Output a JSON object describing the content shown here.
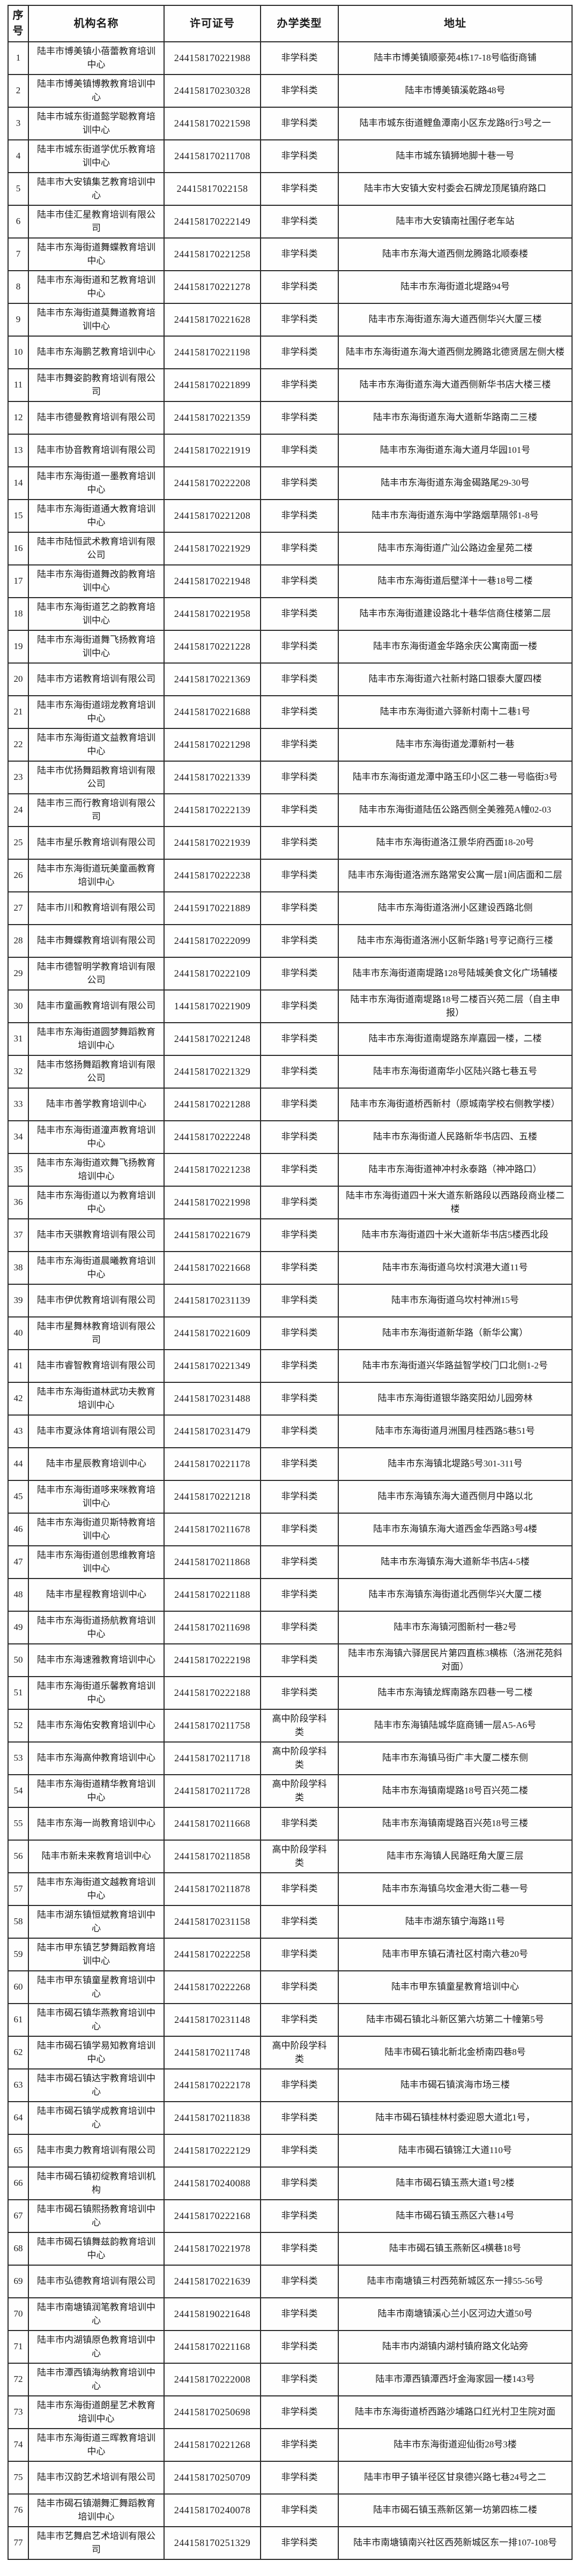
{
  "page": {
    "background": "#ffffff",
    "border_color": "#2b2b2b",
    "text_color": "#1b1b1b"
  },
  "table": {
    "columns": [
      {
        "key": "no",
        "label": "序号"
      },
      {
        "key": "name",
        "label": "机构名称"
      },
      {
        "key": "license",
        "label": "许可证号"
      },
      {
        "key": "type",
        "label": "办学类型"
      },
      {
        "key": "address",
        "label": "地址"
      }
    ],
    "rows": [
      {
        "no": "1",
        "name": "陆丰市博美镇小蓓蕾教育培训中心",
        "license": "244158170221988",
        "type": "非学科类",
        "address": "陆丰市博美镇顺豪苑4栋17-18号临街商铺"
      },
      {
        "no": "2",
        "name": "陆丰市博美镇博教教育培训中心",
        "license": "244158170230328",
        "type": "非学科类",
        "address": "陆丰市博美镇溪乾路48号"
      },
      {
        "no": "3",
        "name": "陆丰市城东街道懿学聪教育培训中心",
        "license": "244158170221598",
        "type": "非学科类",
        "address": "陆丰市城东街道鲤鱼潭南小区东龙路8行3号之一"
      },
      {
        "no": "4",
        "name": "陆丰市城东街道学优乐教育培训中心",
        "license": "244158170211708",
        "type": "非学科类",
        "address": "陆丰市城东镇狮地脚十巷一号"
      },
      {
        "no": "5",
        "name": "陆丰市大安镇集艺教育培训中心",
        "license": "24415817022158",
        "type": "非学科类",
        "address": "陆丰市大安镇大安村委会石牌龙顶尾镇府路口"
      },
      {
        "no": "6",
        "name": "陆丰市佳汇星教育培训有限公司",
        "license": "244158170222149",
        "type": "非学科类",
        "address": "陆丰市大安镇南社围仔老车站"
      },
      {
        "no": "7",
        "name": "陆丰市东海街道舞蝶教育培训中心",
        "license": "244158170221258",
        "type": "非学科类",
        "address": "陆丰市东海大道西侧龙腾路北顺泰楼"
      },
      {
        "no": "8",
        "name": "陆丰市东海街道和艺教育培训中心",
        "license": "244158170221278",
        "type": "非学科类",
        "address": "陆丰市东海街道北堤路94号"
      },
      {
        "no": "9",
        "name": "陆丰市东海街道莫舞道教育培训中心",
        "license": "244158170221628",
        "type": "非学科类",
        "address": "陆丰市东海街道东海大道西侧华兴大厦三楼"
      },
      {
        "no": "10",
        "name": "陆丰市东海鹏艺教育培训中心",
        "license": "244158170221198",
        "type": "非学科类",
        "address": "陆丰市东海街道东海大道西侧龙腾路北德贤居左侧大楼"
      },
      {
        "no": "11",
        "name": "陆丰市舞姿韵教育培训有限公司",
        "license": "244158170221899",
        "type": "非学科类",
        "address": "陆丰市东海街道东海大道西侧新华书店大楼三楼"
      },
      {
        "no": "12",
        "name": "陆丰市德曼教育培训有限公司",
        "license": "244158170221359",
        "type": "非学科类",
        "address": "陆丰市东海街道东海大道新华路南二三楼"
      },
      {
        "no": "13",
        "name": "陆丰市协音教育培训有限公司",
        "license": "244158170221919",
        "type": "非学科类",
        "address": "陆丰市东海街道东海大道月华园101号"
      },
      {
        "no": "14",
        "name": "陆丰市东海街道一墨教育培训中心",
        "license": "244158170222208",
        "type": "非学科类",
        "address": "陆丰市东海街道东海金碣路尾29-30号"
      },
      {
        "no": "15",
        "name": "陆丰市东海街道通大教育培训中心",
        "license": "244158170221208",
        "type": "非学科类",
        "address": "陆丰市东海街道东海中学路烟草隔邻1-8号"
      },
      {
        "no": "16",
        "name": "陆丰市陆恒武术教育培训有限公司",
        "license": "244158170221929",
        "type": "非学科类",
        "address": "陆丰市东海街道广汕公路边金星苑二楼"
      },
      {
        "no": "17",
        "name": "陆丰市东海街道舞改韵教育培训中心",
        "license": "244158170221948",
        "type": "非学科类",
        "address": "陆丰市东海街道后壁洋十一巷18号二楼"
      },
      {
        "no": "18",
        "name": "陆丰市东海街道艺之韵教育培训中心",
        "license": "244158170221958",
        "type": "非学科类",
        "address": "陆丰市东海街道建设路北十巷华信商住楼第二层"
      },
      {
        "no": "19",
        "name": "陆丰市东海街道舞飞扬教育培训中心",
        "license": "244158170221228",
        "type": "非学科类",
        "address": "陆丰市东海街道金华路余庆公寓南面一楼"
      },
      {
        "no": "20",
        "name": "陆丰市方诺教育培训有限公司",
        "license": "244158170221369",
        "type": "非学科类",
        "address": "陆丰市东海街道六社新村路口银泰大厦四楼"
      },
      {
        "no": "21",
        "name": "陆丰市东海街道翊龙教育培训中心",
        "license": "244158170221688",
        "type": "非学科类",
        "address": "陆丰市东海街道六驿新村南十二巷1号"
      },
      {
        "no": "22",
        "name": "陆丰市东海街道文益教育培训中心",
        "license": "244158170221298",
        "type": "非学科类",
        "address": "陆丰市东海街道龙潭新村一巷"
      },
      {
        "no": "23",
        "name": "陆丰市优扬舞蹈教育培训有限公司",
        "license": "244158170221339",
        "type": "非学科类",
        "address": "陆丰市东海街道龙潭中路玉印小区二巷一号临街3号"
      },
      {
        "no": "24",
        "name": "陆丰市三而行教育培训有限公司",
        "license": "244158170222139",
        "type": "非学科类",
        "address": "陆丰市东海街道陆伍公路西侧全美雅苑A幢02-03"
      },
      {
        "no": "25",
        "name": "陆丰市星乐教育培训有限公司",
        "license": "244158170221939",
        "type": "非学科类",
        "address": "陆丰市东海街道洛江景华府西面18-20号"
      },
      {
        "no": "26",
        "name": "陆丰市东海街道玩美童画教育培训中心",
        "license": "244158170222238",
        "type": "非学科类",
        "address": "陆丰市东海街道洛洲东路常安公寓一层1间店面和二层"
      },
      {
        "no": "27",
        "name": "陆丰市川和教育培训有限公司",
        "license": "244159170221889",
        "type": "非学科类",
        "address": "陆丰市东海街道洛洲小区建设西路北侧"
      },
      {
        "no": "28",
        "name": "陆丰市舞蝶教育培训有限公司",
        "license": "244158170222099",
        "type": "非学科类",
        "address": "陆丰市东海街道洛洲小区新华路1号亨记商行三楼"
      },
      {
        "no": "29",
        "name": "陆丰市德智明学教育培训有限公司",
        "license": "244158170222109",
        "type": "非学科类",
        "address": "陆丰市东海街道南堤路128号陆城美食文化广场辅楼"
      },
      {
        "no": "30",
        "name": "陆丰市童画教育培训有限公司",
        "license": "144158170221909",
        "type": "非学科类",
        "address": "陆丰市东海街道南堤路18号二楼百兴苑二层（自主申报）"
      },
      {
        "no": "31",
        "name": "陆丰市东海街道圆梦舞蹈教育培训中心",
        "license": "244158170221248",
        "type": "非学科类",
        "address": "陆丰市东海街道南堤路东岸嘉园一楼，二楼"
      },
      {
        "no": "32",
        "name": "陆丰市悠扬舞蹈教育培训有限公司",
        "license": "244158170221329",
        "type": "非学科类",
        "address": "陆丰市东海街道南华小区陆兴路七巷五号"
      },
      {
        "no": "33",
        "name": "陆丰市善学教育培训中心",
        "license": "244158170221288",
        "type": "非学科类",
        "address": "陆丰市东海街道桥西新村（原城南学校右侧教学楼）"
      },
      {
        "no": "34",
        "name": "陆丰市东海街道潼声教育培训中心",
        "license": "244158170222248",
        "type": "非学科类",
        "address": "陆丰市东海街道人民路新华书店四、五楼"
      },
      {
        "no": "35",
        "name": "陆丰市东海街道欢舞飞扬教育培训中心",
        "license": "244158170221238",
        "type": "非学科类",
        "address": "陆丰市东海街道神冲村永泰路（神冲路口）"
      },
      {
        "no": "36",
        "name": "陆丰市东海街道以为教育培训中心",
        "license": "244158170221998",
        "type": "非学科类",
        "address": "陆丰市东海街道四十米大道东新路段以西路段商业楼二楼"
      },
      {
        "no": "37",
        "name": "陆丰市天骐教育培训有限公司",
        "license": "244158170221679",
        "type": "非学科类",
        "address": "陆丰市东海街道四十米大道新华书店5楼西北段"
      },
      {
        "no": "38",
        "name": "陆丰市东海街道晨曦教育培训中心",
        "license": "244158170221668",
        "type": "非学科类",
        "address": "陆丰市东海街道乌坎村滨港大道11号"
      },
      {
        "no": "39",
        "name": "陆丰市伊优教育培训有限公司",
        "license": "244158170231139",
        "type": "非学科类",
        "address": "陆丰市东海街道乌坎村神洲15号"
      },
      {
        "no": "40",
        "name": "陆丰市星舞林教育培训有限公司",
        "license": "244158170221609",
        "type": "非学科类",
        "address": "陆丰市东海街道新华路（新华公寓）"
      },
      {
        "no": "41",
        "name": "陆丰市睿智教育培训有限公司",
        "license": "244158170221349",
        "type": "非学科类",
        "address": "陆丰市东海街道兴华路益智学校门口北侧1-2号"
      },
      {
        "no": "42",
        "name": "陆丰市东海街道林武功夫教育培训中心",
        "license": "244158170231488",
        "type": "非学科类",
        "address": "陆丰市东海街道银华路奕阳幼儿园旁林"
      },
      {
        "no": "43",
        "name": "陆丰市夏泳体育培训有限公司",
        "license": "244158170231479",
        "type": "非学科类",
        "address": "陆丰市东海街道月洲围月桂西路5巷51号"
      },
      {
        "no": "44",
        "name": "陆丰市星辰教育培训中心",
        "license": "244158170221178",
        "type": "非学科类",
        "address": "陆丰市东海镇北堤路5号301-311号"
      },
      {
        "no": "45",
        "name": "陆丰市东海街道哆来咪教育培训中心",
        "license": "244158170221218",
        "type": "非学科类",
        "address": "陆丰市东海镇东海大道西侧月中路以北"
      },
      {
        "no": "46",
        "name": "陆丰市东海街道贝斯特教育培训中心",
        "license": "244158170211678",
        "type": "非学科类",
        "address": "陆丰市东海镇东海大道西金华西路3号4楼"
      },
      {
        "no": "47",
        "name": "陆丰市东海街道创思维教育培训中心",
        "license": "244158170211868",
        "type": "非学科类",
        "address": "陆丰市东海镇东海大道新华书店4-5楼"
      },
      {
        "no": "48",
        "name": "陆丰市星程教育培训中心",
        "license": "244158170221188",
        "type": "非学科类",
        "address": "陆丰市东海镇东海街道北西侧华兴大厦二楼"
      },
      {
        "no": "49",
        "name": "陆丰市东海街道扬航教育培训中心",
        "license": "244158170211698",
        "type": "非学科类",
        "address": "陆丰市东海镇河图新村一巷2号"
      },
      {
        "no": "50",
        "name": "陆丰市东海速雅教育培训中心",
        "license": "244158170222198",
        "type": "非学科类",
        "address": "陆丰市东海镇六驿居民片第四直栋3横栋（洛洲花苑斜对面）"
      },
      {
        "no": "51",
        "name": "陆丰市东海街道乐馨教育培训中心",
        "license": "244158170222188",
        "type": "非学科类",
        "address": "陆丰市东海镇龙辉南路东四巷一号二楼"
      },
      {
        "no": "52",
        "name": "陆丰市东海佑安教育培训中心",
        "license": "244158170211758",
        "type": "高中阶段学科类",
        "address": "陆丰市东海镇陆城华庭商铺一层A5-A6号"
      },
      {
        "no": "53",
        "name": "陆丰市东海高仲教育培训中心",
        "license": "244158170211718",
        "type": "高中阶段学科类",
        "address": "陆丰市东海镇马街广丰大厦二楼东侧"
      },
      {
        "no": "54",
        "name": "陆丰市东海街道精华教育培训中心",
        "license": "244158170211728",
        "type": "高中阶段学科类",
        "address": "陆丰市东海镇南堤路18号百兴苑二楼"
      },
      {
        "no": "55",
        "name": "陆丰市东海一尚教育培训中心",
        "license": "244158170211668",
        "type": "非学科类",
        "address": "陆丰市东海镇南堤路百兴苑18号三楼"
      },
      {
        "no": "56",
        "name": "陆丰市新未来教育培训中心",
        "license": "244158170211858",
        "type": "高中阶段学科类",
        "address": "陆丰市东海镇人民路旺角大厦三层"
      },
      {
        "no": "57",
        "name": "陆丰市东海街道文越教育培训中心",
        "license": "244158170211878",
        "type": "非学科类",
        "address": "陆丰市东海镇乌坎金港大街二巷一号"
      },
      {
        "no": "58",
        "name": "陆丰市湖东镇恒斌教育培训中心",
        "license": "244158170231158",
        "type": "非学科类",
        "address": "陆丰市湖东镇宁海路11号"
      },
      {
        "no": "59",
        "name": "陆丰市甲东镇艺梦舞蹈教育培训中心",
        "license": "244158170222258",
        "type": "非学科类",
        "address": "陆丰市甲东镇石清社区村南六巷20号"
      },
      {
        "no": "60",
        "name": "陆丰市甲东镇童星教育培训中心",
        "license": "244158170222268",
        "type": "非学科类",
        "address": "陆丰市甲东镇童星教育培训中心"
      },
      {
        "no": "61",
        "name": "陆丰市碣石镇华燕教育培训中心",
        "license": "244158170231148",
        "type": "非学科类",
        "address": "陆丰市碣石镇北斗新区第六坊第二十幢第5号"
      },
      {
        "no": "62",
        "name": "陆丰市碣石镇学易知教育培训中心",
        "license": "244158170211748",
        "type": "高中阶段学科类",
        "address": "陆丰市碣石镇北新北金桥南四巷8号"
      },
      {
        "no": "63",
        "name": "陆丰市碣石镇达宇教育培训中心",
        "license": "244158170222178",
        "type": "非学科类",
        "address": "陆丰市碣石镇滨海市场三楼"
      },
      {
        "no": "64",
        "name": "陆丰市碣石镇学成教育培训中心",
        "license": "244158170211838",
        "type": "非学科类",
        "address": "陆丰市碣石镇桂林村委迎恩大道北1号，"
      },
      {
        "no": "65",
        "name": "陆丰市奥力教育培训有限公司",
        "license": "244158170222129",
        "type": "非学科类",
        "address": "陆丰市碣石镇锦江大道110号"
      },
      {
        "no": "66",
        "name": "陆丰市碣石镇初绽教育培训机构",
        "license": "244158170240088",
        "type": "非学科类",
        "address": "陆丰市碣石镇玉燕大道1号2楼"
      },
      {
        "no": "67",
        "name": "陆丰市碣石镇熙扬教育培训中心",
        "license": "244158170222168",
        "type": "非学科类",
        "address": "陆丰市碣石镇玉燕区六巷14号"
      },
      {
        "no": "68",
        "name": "陆丰市碣石镇舞兹韵教育培训中心",
        "license": "244158170221978",
        "type": "非学科类",
        "address": "陆丰市碣石镇玉燕新区4横巷18号"
      },
      {
        "no": "69",
        "name": "陆丰市弘德教育培训有限公司",
        "license": "244158170221639",
        "type": "非学科类",
        "address": "陆丰市南塘镇三村西苑新城区东一排55-56号"
      },
      {
        "no": "70",
        "name": "陆丰市南塘镇润笔教育培训中心",
        "license": "244158190221648",
        "type": "非学科类",
        "address": "陆丰市南塘镇溪心兰小区河边大道50号"
      },
      {
        "no": "71",
        "name": "陆丰市内湖镇原色教育培训中心",
        "license": "244158170221168",
        "type": "非学科类",
        "address": "陆丰市内湖镇内湖村镇府路文化站旁"
      },
      {
        "no": "72",
        "name": "陆丰市潭西镇海纳教育培训中心",
        "license": "244158170222008",
        "type": "非学科类",
        "address": "陆丰市潭西镇潭西圩金海家园一楼143号"
      },
      {
        "no": "73",
        "name": "陆丰市东海街道朗星艺术教育培训中心",
        "license": "244158170250698",
        "type": "非学科类",
        "address": "陆丰市东海街道桥西路沙埔路口红光村卫生院对面"
      },
      {
        "no": "74",
        "name": "陆丰市东海街道三晖教育培训中心",
        "license": "244158170221268",
        "type": "非学科类",
        "address": "陆丰市东海街道迎仙街28号3楼"
      },
      {
        "no": "75",
        "name": "陆丰市汉韵艺术培训有限公司",
        "license": "244158170250709",
        "type": "非学科类",
        "address": "陆丰市甲子镇半径区甘泉德兴路七巷24号之二"
      },
      {
        "no": "76",
        "name": "陆丰市碣石镇潮舞汇舞蹈教育培训中心",
        "license": "244158170240078",
        "type": "非学科类",
        "address": "陆丰市碣石镇玉燕新区第一坊第四栋二楼"
      },
      {
        "no": "77",
        "name": "陆丰市艺舞启艺术培训有限公司",
        "license": "244158170251329",
        "type": "非学科类",
        "address": "陆丰市南塘镇南兴社区西苑新城区东一排107-108号"
      }
    ]
  }
}
